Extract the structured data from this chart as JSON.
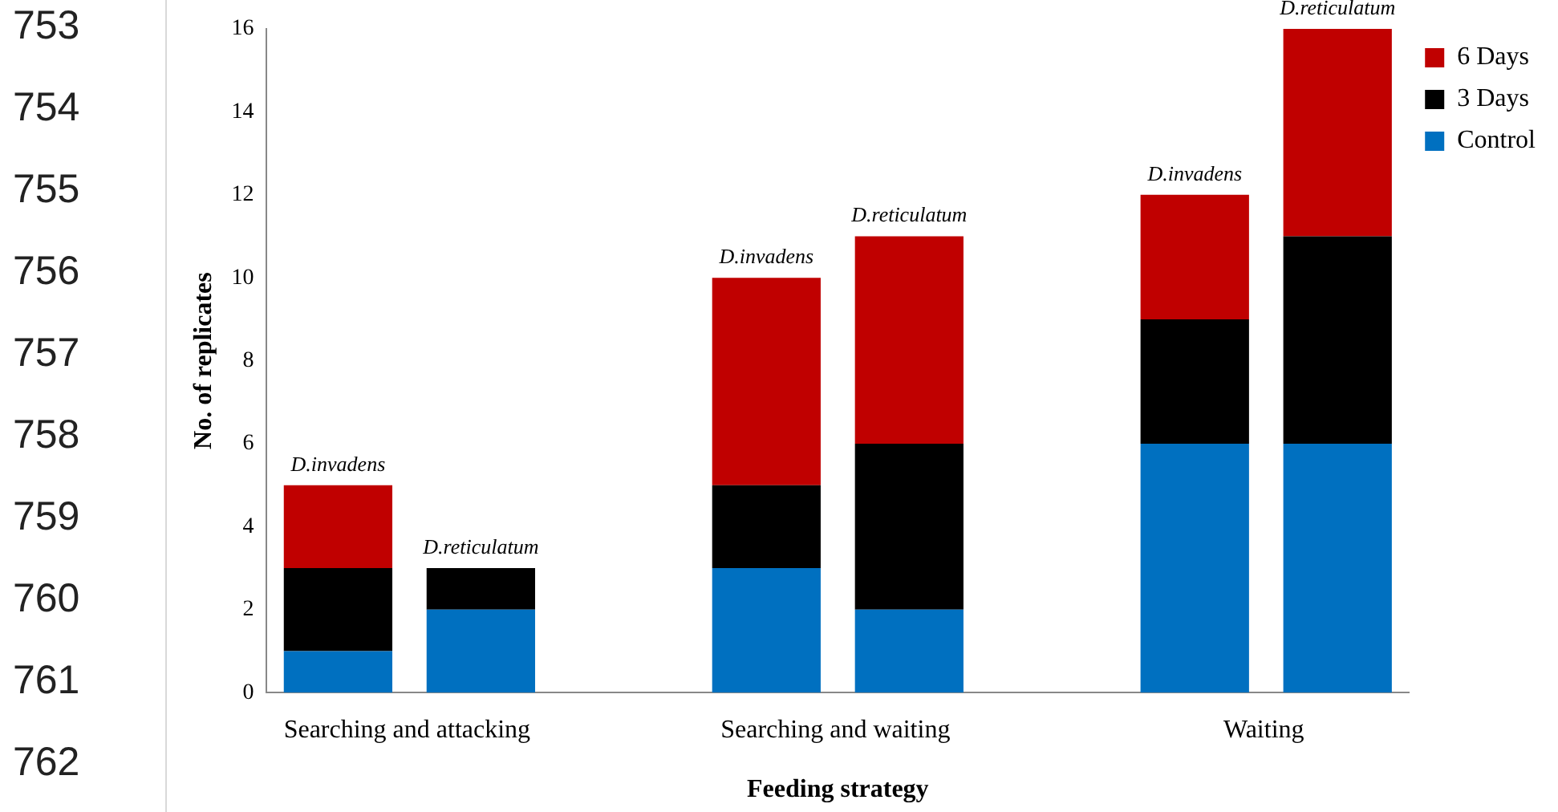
{
  "chart_data": {
    "type": "bar",
    "stacked": true,
    "xlabel": "Feeding strategy",
    "ylabel": "No. of replicates",
    "categories": [
      "Searching and attacking",
      null,
      null,
      "Searching and waiting",
      null,
      null,
      "Waiting",
      null
    ],
    "series": [
      {
        "name": "Control",
        "color": "#0070c0",
        "values": [
          1,
          2,
          null,
          3,
          2,
          null,
          6,
          6
        ]
      },
      {
        "name": "3 Days",
        "color": "#000000",
        "values": [
          2,
          1,
          null,
          2,
          4,
          null,
          3,
          5
        ]
      },
      {
        "name": "6 Days",
        "color": "#c00000",
        "values": [
          2,
          0,
          null,
          5,
          5,
          null,
          3,
          5
        ]
      }
    ],
    "ylim": [
      0,
      16
    ],
    "yticks": [
      0,
      2,
      4,
      6,
      8,
      10,
      12,
      14,
      16
    ],
    "grid": false,
    "legend": "top right",
    "annotations": [
      {
        "text": "D.invadens",
        "y": 5
      },
      {
        "text": "D.reticulatum",
        "y": 3
      },
      {
        "text": "D.invadens",
        "y": 10
      },
      {
        "text": "D.reticulatum",
        "y": 11
      },
      {
        "text": "D.invadens",
        "y": 12
      },
      {
        "text": "D.reticulatum",
        "y": 16
      },
      "753",
      "754",
      "755",
      "756",
      "757",
      "758",
      "759",
      "760",
      "761",
      "762"
    ]
  }
}
